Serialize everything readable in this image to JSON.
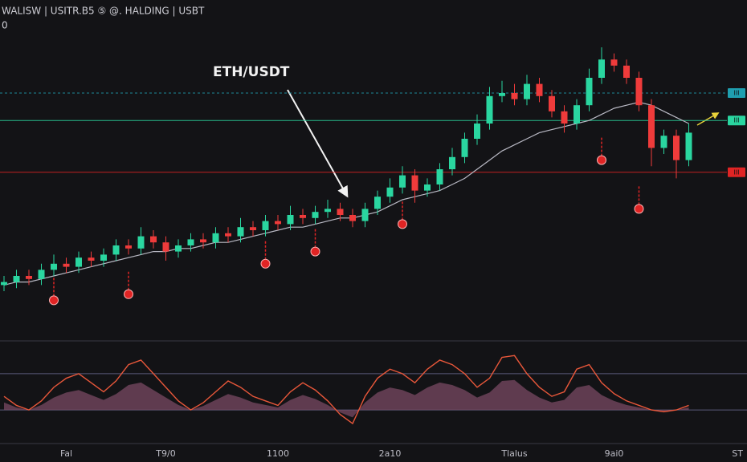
{
  "chart_data": {
    "type": "candlestick",
    "title": "WALISW | USITR.B5 ⑤ @. HALDING | USBT",
    "subtitle": "0",
    "annotation": "ETH/USDT",
    "up_color": "#2ad6a0",
    "down_color": "#ef3b3b",
    "ylim": [
      0,
      100
    ],
    "categories": [
      null,
      null,
      null,
      null,
      null,
      "Fal",
      null,
      null,
      null,
      null,
      null,
      null,
      null,
      "T9/0",
      null,
      null,
      null,
      null,
      null,
      null,
      null,
      null,
      "1100",
      null,
      null,
      null,
      null,
      null,
      null,
      null,
      null,
      "2a10",
      null,
      null,
      null,
      null,
      null,
      null,
      null,
      null,
      null,
      "Tlalus",
      null,
      null,
      null,
      null,
      null,
      null,
      null,
      "9ai0",
      null,
      null,
      null,
      null,
      null,
      null
    ],
    "x_end_label": "ST",
    "open": [
      17,
      18,
      20,
      19,
      22,
      24,
      23,
      26,
      25,
      27,
      30,
      29,
      33,
      31,
      28,
      30,
      32,
      31,
      34,
      33,
      36,
      35,
      38,
      37,
      40,
      39,
      41,
      42,
      40,
      38,
      42,
      46,
      49,
      53,
      48,
      50,
      55,
      59,
      65,
      70,
      79,
      80,
      78,
      83,
      79,
      74,
      70,
      76,
      85,
      91,
      89,
      85,
      76,
      62,
      66,
      58
    ],
    "high": [
      20,
      22,
      22,
      24,
      27,
      26,
      28,
      28,
      29,
      32,
      32,
      36,
      35,
      33,
      32,
      34,
      34,
      36,
      36,
      39,
      38,
      40,
      40,
      43,
      42,
      43,
      45,
      44,
      42,
      44,
      48,
      52,
      56,
      55,
      52,
      57,
      62,
      67,
      73,
      82,
      84,
      83,
      86,
      85,
      81,
      76,
      78,
      88,
      95,
      93,
      91,
      87,
      78,
      68,
      68,
      70
    ],
    "low": [
      15,
      16,
      17,
      17,
      20,
      21,
      21,
      23,
      23,
      25,
      27,
      27,
      29,
      25,
      26,
      28,
      29,
      29,
      31,
      31,
      33,
      33,
      35,
      35,
      37,
      37,
      39,
      38,
      36,
      36,
      40,
      44,
      47,
      44,
      46,
      48,
      53,
      57,
      63,
      68,
      77,
      76,
      76,
      77,
      72,
      67,
      68,
      74,
      83,
      87,
      83,
      74,
      56,
      60,
      52,
      56
    ],
    "close": [
      18,
      20,
      19,
      22,
      24,
      23,
      26,
      25,
      27,
      30,
      29,
      33,
      31,
      28,
      30,
      32,
      31,
      34,
      33,
      36,
      35,
      38,
      37,
      40,
      39,
      41,
      42,
      40,
      38,
      42,
      46,
      49,
      53,
      48,
      50,
      55,
      59,
      65,
      70,
      79,
      80,
      78,
      83,
      79,
      74,
      70,
      76,
      85,
      91,
      89,
      85,
      76,
      62,
      66,
      58,
      67
    ],
    "moving_average": {
      "color": "#b9b9c4",
      "values": [
        17,
        18,
        18,
        19,
        20,
        21,
        22,
        23,
        24,
        25,
        26,
        27,
        28,
        28,
        29,
        29,
        30,
        31,
        31,
        32,
        33,
        34,
        35,
        36,
        36,
        37,
        38,
        39,
        39,
        40,
        41,
        43,
        45,
        46,
        47,
        48,
        50,
        52,
        55,
        58,
        61,
        63,
        65,
        67,
        68,
        69,
        70,
        71,
        73,
        75,
        76,
        77,
        76,
        74,
        72,
        70
      ]
    },
    "signals": {
      "color": "#e02424",
      "values": [
        null,
        null,
        null,
        null,
        12,
        null,
        null,
        null,
        null,
        null,
        14,
        null,
        null,
        null,
        null,
        null,
        null,
        null,
        null,
        null,
        null,
        24,
        null,
        null,
        null,
        28,
        null,
        null,
        null,
        null,
        null,
        null,
        37,
        null,
        null,
        null,
        null,
        null,
        null,
        null,
        null,
        null,
        null,
        null,
        null,
        null,
        null,
        null,
        58,
        null,
        null,
        42,
        null,
        null,
        null,
        null
      ]
    },
    "levels": [
      {
        "value": 80,
        "color": "#1f9fb0",
        "label": "III"
      },
      {
        "value": 71,
        "color": "#2ad6a0",
        "label": "III"
      },
      {
        "value": 54,
        "color": "#e02424",
        "label": "III"
      }
    ],
    "oscillator": {
      "color": "#e8573a",
      "fill": "#7a4a63",
      "ylim": [
        0,
        100
      ],
      "levels": [
        70,
        30
      ],
      "values": [
        45,
        35,
        30,
        40,
        55,
        65,
        70,
        60,
        50,
        62,
        80,
        85,
        70,
        55,
        40,
        30,
        38,
        50,
        62,
        55,
        45,
        40,
        35,
        50,
        60,
        52,
        40,
        25,
        15,
        45,
        65,
        75,
        70,
        60,
        75,
        85,
        80,
        70,
        55,
        65,
        88,
        90,
        70,
        55,
        45,
        50,
        75,
        80,
        60,
        48,
        40,
        35,
        30,
        28,
        30,
        35
      ]
    }
  }
}
